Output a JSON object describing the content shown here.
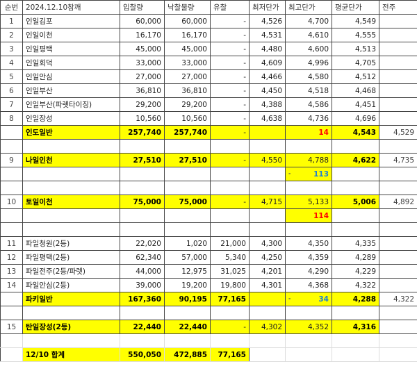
{
  "header": [
    "순번",
    "2024.12.10참깨",
    "입찰량",
    "낙찰물량",
    "유찰",
    "최저단가",
    "최고단가",
    "평균단가",
    "전주"
  ],
  "colors": {
    "highlight": "#ffff00",
    "red": "#ff0000",
    "blue": "#1f7fd0"
  },
  "rows": [
    {
      "cells": [
        "1",
        "인일김포",
        "60,000",
        "60,000",
        "-",
        "4,526",
        "4,700",
        "4,549",
        ""
      ]
    },
    {
      "cells": [
        "2",
        "인일이천",
        "16,170",
        "16,170",
        "-",
        "4,531",
        "4,610",
        "4,555",
        ""
      ]
    },
    {
      "cells": [
        "3",
        "인일평택",
        "45,000",
        "45,000",
        "-",
        "4,480",
        "4,600",
        "4,513",
        ""
      ]
    },
    {
      "cells": [
        "4",
        "인일회덕",
        "33,000",
        "33,000",
        "-",
        "4,609",
        "4,996",
        "4,705",
        ""
      ]
    },
    {
      "cells": [
        "5",
        "인일안심",
        "27,000",
        "27,000",
        "-",
        "4,466",
        "4,580",
        "4,512",
        ""
      ]
    },
    {
      "cells": [
        "6",
        "인일부산",
        "36,810",
        "36,810",
        "-",
        "4,450",
        "4,518",
        "4,468",
        ""
      ]
    },
    {
      "cells": [
        "7",
        "인일부산(파렛타이징)",
        "29,200",
        "29,200",
        "-",
        "4,388",
        "4,586",
        "4,451",
        ""
      ]
    },
    {
      "cells": [
        "8",
        "인일장성",
        "10,560",
        "10,560",
        "-",
        "4,638",
        "4,736",
        "4,696",
        ""
      ]
    },
    {
      "cells": [
        "",
        "인도일반",
        "257,740",
        "257,740",
        "-",
        "",
        "14",
        "4,543",
        "4,529"
      ],
      "yellow": [
        1,
        2,
        3,
        4,
        5,
        6,
        7
      ],
      "bold": [
        1,
        2,
        3,
        6,
        7
      ],
      "color": {
        "6": "red"
      }
    },
    {
      "cells": [
        "",
        "",
        "",
        "",
        "",
        "",
        "",
        "",
        ""
      ]
    },
    {
      "cells": [
        "9",
        "나일인천",
        "27,510",
        "27,510",
        "-",
        "4,550",
        "4,788",
        "4,622",
        "4,735"
      ],
      "yellow": [
        1,
        2,
        3,
        4,
        5,
        6,
        7
      ],
      "bold": [
        1,
        2,
        3,
        7
      ]
    },
    {
      "cells": [
        "",
        "",
        "",
        "",
        "",
        "",
        "113",
        "",
        ""
      ],
      "yellow": [
        6
      ],
      "bold": [
        6
      ],
      "color": {
        "6": "blue"
      },
      "dash": {
        "6": "-"
      }
    },
    {
      "cells": [
        "",
        "",
        "",
        "",
        "",
        "",
        "",
        "",
        ""
      ]
    },
    {
      "cells": [
        "10",
        "토일이천",
        "75,000",
        "75,000",
        "-",
        "4,715",
        "5,133",
        "5,006",
        "4,892"
      ],
      "yellow": [
        1,
        2,
        3,
        4,
        5,
        6,
        7
      ],
      "bold": [
        1,
        2,
        3,
        7
      ]
    },
    {
      "cells": [
        "",
        "",
        "",
        "",
        "",
        "",
        "114",
        "",
        ""
      ],
      "yellow": [
        6
      ],
      "bold": [
        6
      ],
      "color": {
        "6": "red"
      }
    },
    {
      "cells": [
        "",
        "",
        "",
        "",
        "",
        "",
        "",
        "",
        ""
      ]
    },
    {
      "cells": [
        "11",
        "파일청원(2등)",
        "22,020",
        "1,020",
        "21,000",
        "4,300",
        "4,350",
        "4,335",
        ""
      ]
    },
    {
      "cells": [
        "12",
        "파일평택(2등)",
        "62,340",
        "57,000",
        "5,340",
        "4,250",
        "4,359",
        "4,289",
        ""
      ]
    },
    {
      "cells": [
        "13",
        "파일전주(2등/파렛)",
        "44,000",
        "12,975",
        "31,025",
        "4,201",
        "4,290",
        "4,229",
        ""
      ]
    },
    {
      "cells": [
        "14",
        "파일안심(2등)",
        "39,000",
        "19,200",
        "19,800",
        "4,301",
        "4,368",
        "4,322",
        ""
      ]
    },
    {
      "cells": [
        "",
        "파키일반",
        "167,360",
        "90,195",
        "77,165",
        "",
        "34",
        "4,288",
        "4,322"
      ],
      "yellow": [
        1,
        2,
        3,
        4,
        5,
        6,
        7
      ],
      "bold": [
        1,
        2,
        3,
        4,
        6,
        7
      ],
      "color": {
        "6": "blue"
      },
      "dash": {
        "6": "-"
      }
    },
    {
      "cells": [
        "",
        "",
        "",
        "",
        "",
        "",
        "",
        "",
        ""
      ]
    },
    {
      "cells": [
        "15",
        "탄일장성(2등)",
        "22,440",
        "22,440",
        "-",
        "4,302",
        "4,352",
        "4,316",
        ""
      ],
      "yellow": [
        1,
        2,
        3,
        4,
        5,
        6,
        7
      ],
      "bold": [
        1,
        2,
        3,
        7
      ]
    },
    {
      "cells": [
        "",
        "",
        "",
        "",
        "",
        "",
        "",
        "",
        ""
      ],
      "light": true
    },
    {
      "cells": [
        "",
        "12/10 합계",
        "550,050",
        "472,885",
        "77,165",
        "",
        "",
        "",
        ""
      ],
      "yellow": [
        1,
        2,
        3,
        4
      ],
      "bold": [
        1,
        2,
        3,
        4
      ],
      "light": true,
      "total": true
    }
  ]
}
